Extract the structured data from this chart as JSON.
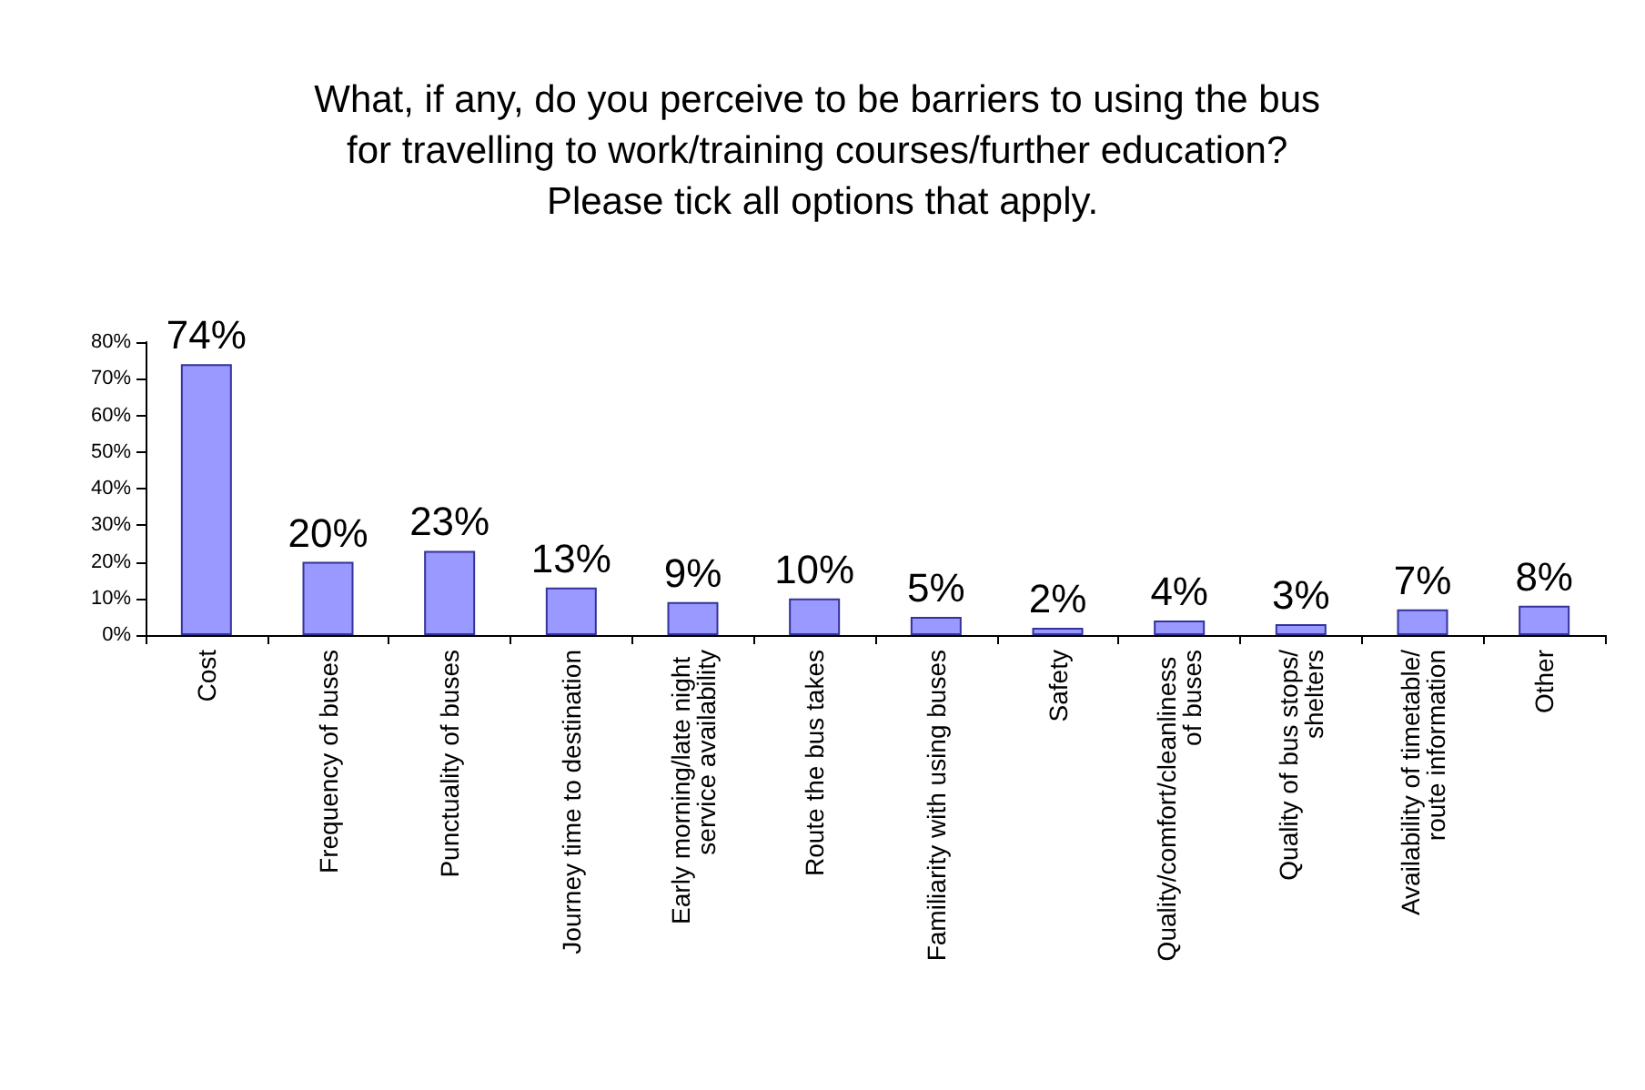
{
  "chart_data": {
    "type": "bar",
    "title": "What, if any, do you perceive to be barriers to using the bus for travelling to work/training courses/further education? Please tick all options that apply.",
    "categories": [
      "Cost",
      "Frequency of buses",
      "Punctuality of buses",
      "Journey time to destination",
      "Early morning/late night service availability",
      "Route the bus takes",
      "Familiarity with using buses",
      "Safety",
      "Quality/comfort/cleanliness of buses",
      "Quality of bus stops/shelters",
      "Availability of timetable/route information",
      "Other"
    ],
    "values": [
      74,
      20,
      23,
      13,
      9,
      10,
      5,
      2,
      4,
      3,
      7,
      8
    ],
    "value_labels": [
      "74%",
      "20%",
      "23%",
      "13%",
      "9%",
      "10%",
      "5%",
      "2%",
      "4%",
      "3%",
      "7%",
      "8%"
    ],
    "color": "#9999ff",
    "ylim": [
      0,
      80
    ],
    "yticks": [
      {
        "value": 0,
        "label": "0%"
      },
      {
        "value": 10,
        "label": "10%"
      },
      {
        "value": 20,
        "label": "20%"
      },
      {
        "value": 30,
        "label": "30%"
      },
      {
        "value": 40,
        "label": "40%"
      },
      {
        "value": 50,
        "label": "50%"
      },
      {
        "value": 60,
        "label": "60%"
      },
      {
        "value": 70,
        "label": "70%"
      },
      {
        "value": 80,
        "label": "80%"
      }
    ],
    "grid": false
  }
}
